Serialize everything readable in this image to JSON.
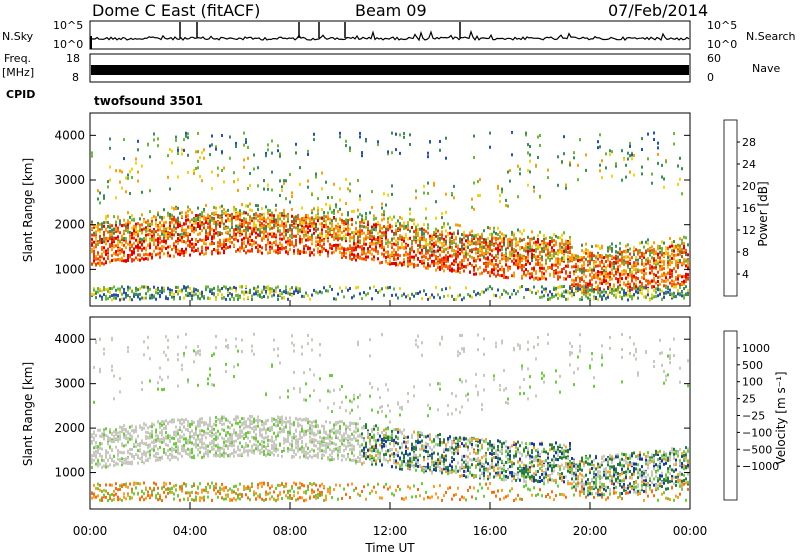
{
  "header": {
    "station": "Dome C East (fitACF)",
    "beam": "Beam 09",
    "date": "07/Feb/2014"
  },
  "side_labels": {
    "nsky": "N.Sky",
    "freq": "Freq.",
    "freq_unit": "[MHz]",
    "cpid": "CPID",
    "nsearch": "N.Search",
    "nave": "Nave"
  },
  "cpid_value": "twofsound 3501",
  "colors": {
    "power": [
      "#0a14e6",
      "#2b4fa8",
      "#3e8a5a",
      "#6fb43c",
      "#f0d21a",
      "#f5a014",
      "#f06a0c",
      "#e8400a",
      "#e00000"
    ],
    "velocity": [
      "#ff0000",
      "#e84010",
      "#f07018",
      "#f5a030",
      "#c8c8c0",
      "#c8c8c0",
      "#6ec840",
      "#2a7a40",
      "#1a3aa0",
      "#0a10c8"
    ]
  },
  "chart_data": [
    {
      "type": "line",
      "name": "nsky-nsearch-panel",
      "left_axis": {
        "label": "N.Sky",
        "ticks": [
          "10^5",
          "10^0"
        ]
      },
      "right_axis": {
        "label": "N.Search",
        "ticks": [
          "10^5",
          "10^0"
        ]
      },
      "x": {
        "range": [
          "00:00",
          "24:00"
        ]
      }
    },
    {
      "type": "line",
      "name": "freq-nave-panel",
      "left_axis": {
        "label": "Freq. [MHz]",
        "ticks": [
          18,
          8
        ]
      },
      "right_axis": {
        "label": "Nave",
        "ticks": [
          60,
          0
        ]
      }
    },
    {
      "type": "heatmap",
      "name": "power-panel",
      "ylabel": "Slant Range [km]",
      "yticks": [
        1000,
        2000,
        3000,
        4000
      ],
      "ylim": [
        180,
        4500
      ],
      "colorbar": {
        "label": "Power [dB]",
        "ticks": [
          4,
          8,
          12,
          16,
          20,
          24,
          28
        ],
        "range": [
          0,
          32
        ]
      }
    },
    {
      "type": "heatmap",
      "name": "velocity-panel",
      "ylabel": "Slant Range [km]",
      "yticks": [
        1000,
        2000,
        3000,
        4000
      ],
      "ylim": [
        180,
        4500
      ],
      "xlabel": "Time UT",
      "xticks": [
        "00:00",
        "04:00",
        "08:00",
        "12:00",
        "16:00",
        "20:00",
        "00:00"
      ],
      "colorbar": {
        "label": "Velocity [m s⁻¹]",
        "ticks": [
          "1000",
          "500",
          "100",
          "25",
          "−25",
          "−100",
          "−500",
          "−1000"
        ]
      }
    }
  ]
}
